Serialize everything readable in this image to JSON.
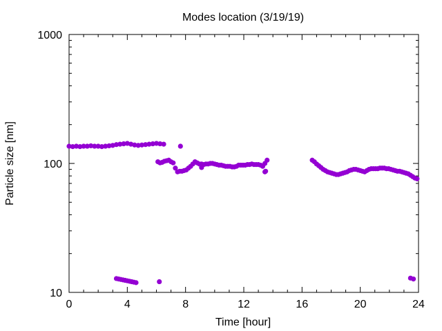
{
  "chart_data": {
    "type": "scatter",
    "title": "Modes location (3/19/19)",
    "xlabel": "Time [hour]",
    "ylabel": "Particle size [nm]",
    "xlim": [
      0,
      24
    ],
    "ylim": [
      10,
      1000
    ],
    "y_scale": "log",
    "x_ticks": [
      0,
      4,
      8,
      12,
      16,
      20,
      24
    ],
    "x_tick_labels": [
      "0",
      "4",
      "8",
      "12",
      "16",
      "20",
      "24"
    ],
    "y_ticks": [
      10,
      100,
      1000
    ],
    "y_tick_labels": [
      "10",
      "100",
      "1000"
    ],
    "grid": false,
    "legend": "none",
    "marker_color": "#9400D3",
    "segments": [
      {
        "x": [
          0,
          0.25,
          0.5,
          0.75,
          1,
          1.25,
          1.5,
          1.75,
          2,
          2.25,
          2.5,
          2.75,
          3,
          3.25,
          3.5,
          3.75,
          4,
          4.25,
          4.5,
          4.75,
          5,
          5.25,
          5.5,
          5.75,
          6,
          6.25,
          6.5
        ],
        "y": [
          136,
          135,
          136,
          135,
          136,
          136,
          137,
          136,
          136,
          135,
          136,
          137,
          138,
          140,
          141,
          142,
          143,
          141,
          139,
          138,
          139,
          140,
          141,
          142,
          143,
          142,
          141
        ]
      },
      {
        "x": [
          6.1,
          6.25,
          6.4,
          6.55,
          6.7,
          6.85,
          7.0,
          7.15,
          7.3,
          7.45,
          7.6,
          7.75,
          7.9,
          8.05,
          8.2,
          8.35,
          8.5,
          8.65,
          8.8,
          8.95,
          9.1,
          9.25,
          9.4,
          9.55,
          9.7,
          9.85,
          10.0,
          10.15,
          10.3,
          10.45,
          10.6,
          10.75,
          10.9,
          11.05,
          11.2,
          11.35,
          11.5,
          11.65,
          11.8,
          11.95,
          12.1,
          12.25,
          12.4,
          12.55,
          12.7,
          12.85,
          13.0,
          13.15,
          13.3,
          13.45,
          13.6
        ],
        "y": [
          103,
          101,
          102,
          104,
          105,
          106,
          103,
          101,
          92,
          86,
          87,
          87,
          88,
          89,
          92,
          95,
          99,
          103,
          101,
          99,
          99,
          98,
          99,
          99,
          100,
          100,
          99,
          98,
          97,
          97,
          96,
          95,
          95,
          95,
          94,
          94,
          95,
          97,
          97,
          97,
          97,
          98,
          98,
          99,
          98,
          98,
          98,
          97,
          95,
          100,
          106
        ]
      },
      {
        "x": [
          16.7,
          16.85,
          17.0,
          17.15,
          17.3,
          17.45,
          17.6,
          17.75,
          17.9,
          18.05,
          18.2,
          18.35,
          18.5,
          18.65,
          18.8,
          18.95,
          19.1,
          19.25,
          19.4,
          19.55,
          19.7,
          19.85,
          20.0,
          20.15,
          20.3,
          20.45,
          20.6,
          20.75,
          20.9,
          21.05,
          21.2,
          21.35,
          21.5,
          21.65,
          21.8,
          21.95,
          22.1,
          22.25,
          22.4,
          22.55,
          22.7,
          22.85,
          23.0,
          23.15,
          23.3,
          23.45,
          23.6,
          23.75,
          23.9
        ],
        "y": [
          106,
          103,
          99,
          96,
          93,
          90,
          88,
          86,
          85,
          84,
          83,
          82,
          82,
          83,
          84,
          85,
          86,
          88,
          89,
          90,
          90,
          89,
          88,
          87,
          86,
          88,
          90,
          91,
          91,
          91,
          91,
          92,
          92,
          92,
          91,
          91,
          90,
          89,
          88,
          87,
          87,
          86,
          85,
          84,
          83,
          81,
          79,
          77,
          76
        ]
      },
      {
        "x": [
          3.25,
          3.4,
          3.55,
          3.7,
          3.85,
          4.0,
          4.15,
          4.3,
          4.45,
          4.6
        ],
        "y": [
          12.8,
          12.7,
          12.6,
          12.5,
          12.4,
          12.3,
          12.2,
          12.1,
          12.0,
          11.9
        ]
      },
      {
        "x": [
          6.2,
          7.65,
          9.1,
          13.45,
          13.5,
          23.45,
          23.65
        ],
        "y": [
          12.1,
          136,
          93,
          86,
          87,
          12.9,
          12.7
        ]
      }
    ]
  }
}
